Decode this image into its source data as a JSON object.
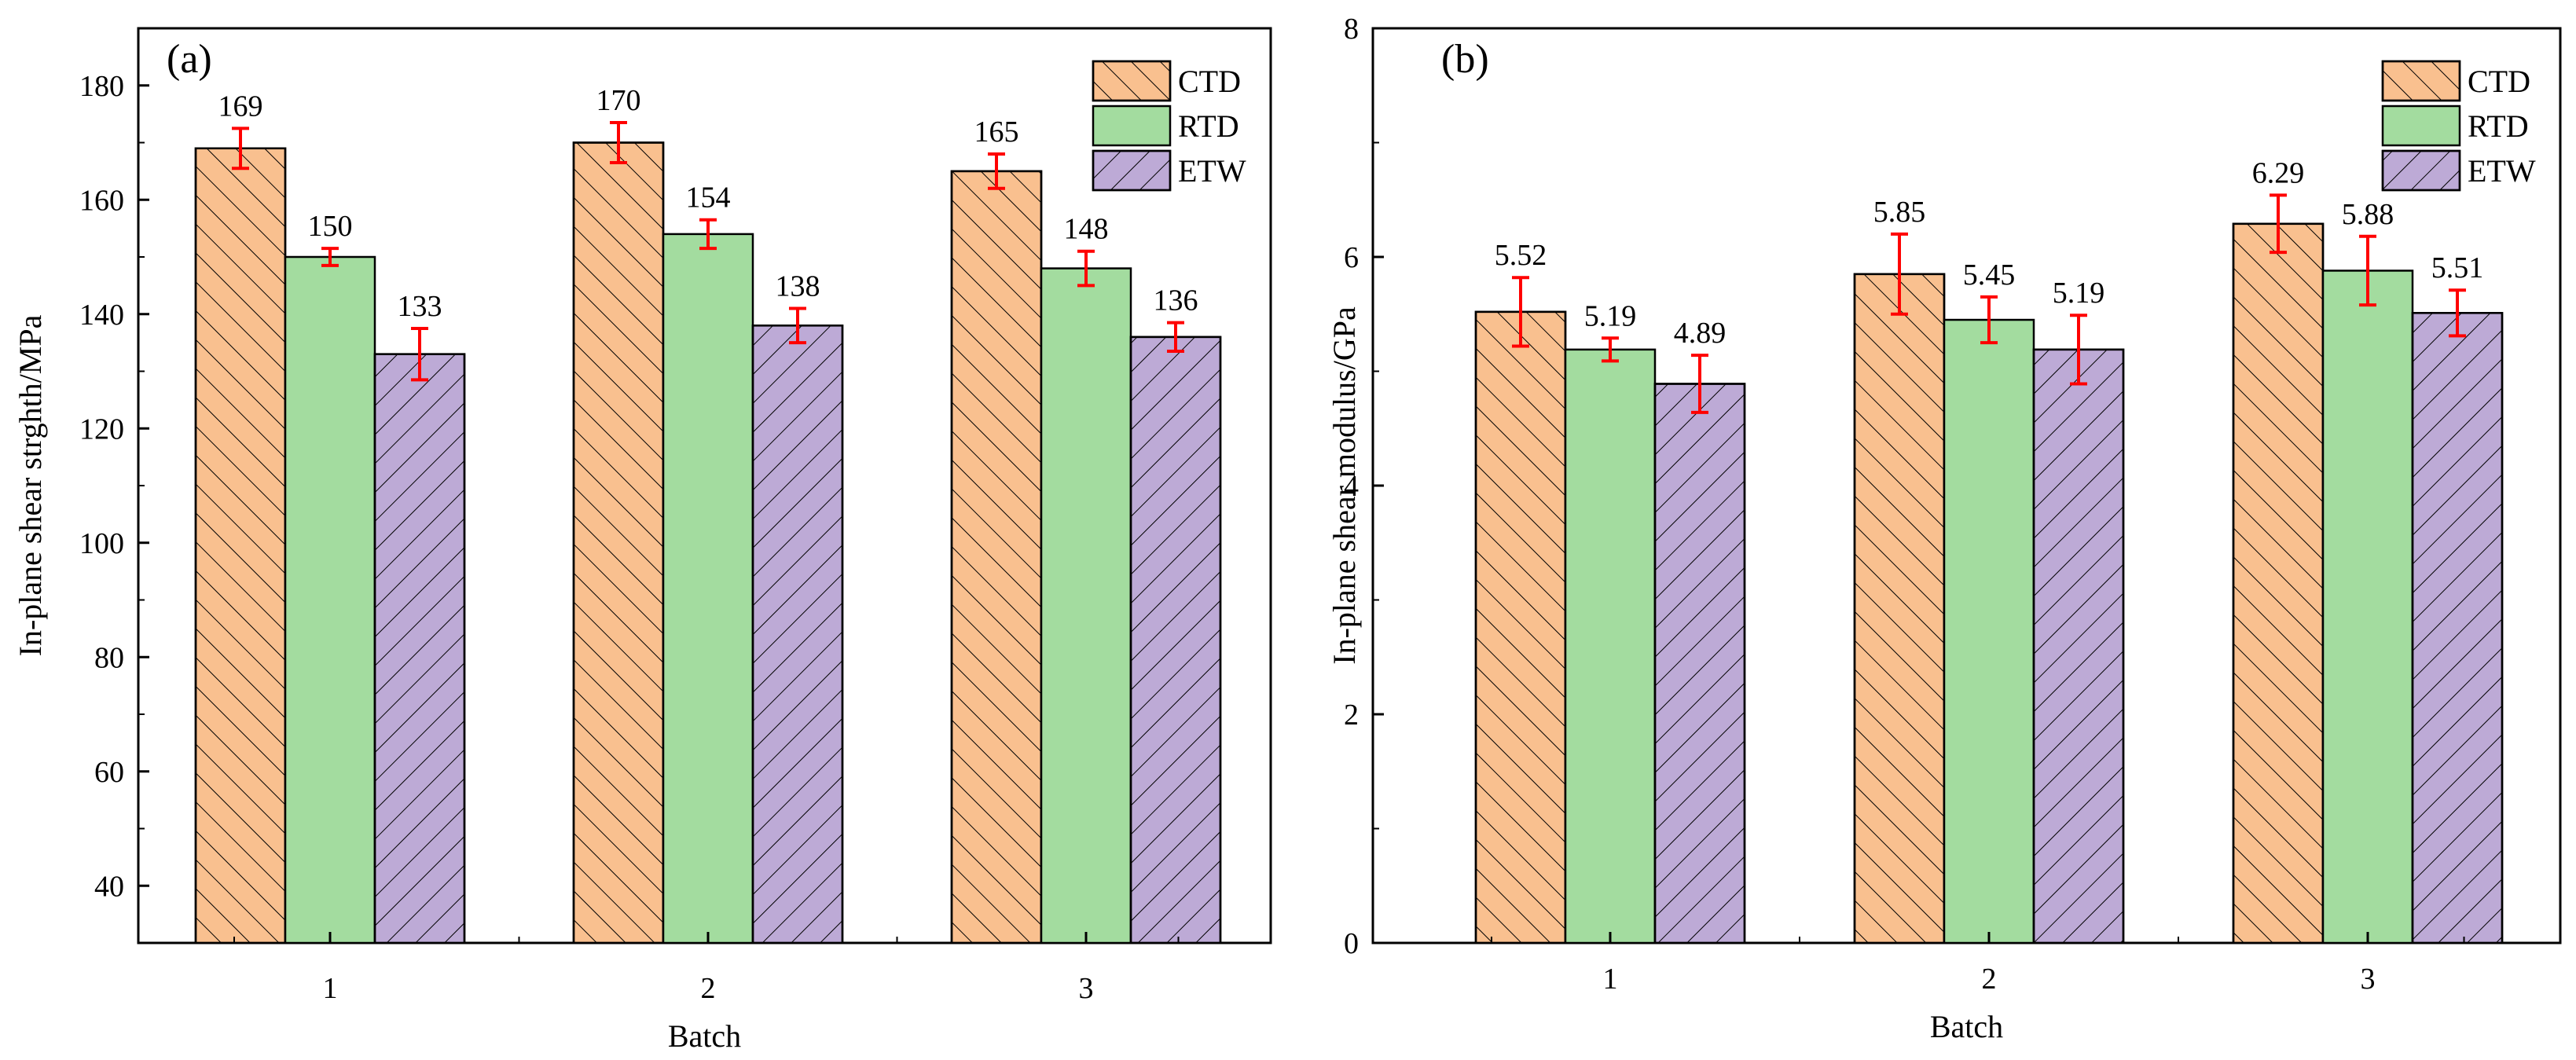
{
  "colors": {
    "CTD": "#f9c08f",
    "RTD": "#a3dc9f",
    "ETW": "#bdaad6",
    "error_bar": "#ff0000",
    "axis": "#000000"
  },
  "chart_data": [
    {
      "type": "bar",
      "panel_label": "(a)",
      "categories": [
        "1",
        "2",
        "3"
      ],
      "series": [
        {
          "name": "CTD",
          "values": [
            169,
            170,
            165
          ],
          "errors": [
            3.5,
            3.5,
            3
          ],
          "labels": [
            "169",
            "170",
            "165"
          ]
        },
        {
          "name": "RTD",
          "values": [
            150,
            154,
            148
          ],
          "errors": [
            1.5,
            2.5,
            3
          ],
          "labels": [
            "150",
            "154",
            "148"
          ]
        },
        {
          "name": "ETW",
          "values": [
            133,
            138,
            136
          ],
          "errors": [
            4.5,
            3,
            2.5
          ],
          "labels": [
            "133",
            "138",
            "136"
          ]
        }
      ],
      "xlabel": "Batch",
      "ylabel": "In-plane shear strghth/MPa",
      "ylim": [
        30,
        190
      ],
      "yticks": [
        40,
        60,
        80,
        100,
        120,
        140,
        160,
        180
      ],
      "legend": "top-right",
      "grid": false
    },
    {
      "type": "bar",
      "panel_label": "(b)",
      "categories": [
        "1",
        "2",
        "3"
      ],
      "series": [
        {
          "name": "CTD",
          "values": [
            5.52,
            5.85,
            6.29
          ],
          "errors": [
            0.3,
            0.35,
            0.25
          ],
          "labels": [
            "5.52",
            "5.85",
            "6.29"
          ]
        },
        {
          "name": "RTD",
          "values": [
            5.19,
            5.45,
            5.88
          ],
          "errors": [
            0.1,
            0.2,
            0.3
          ],
          "labels": [
            "5.19",
            "5.45",
            "5.88"
          ]
        },
        {
          "name": "ETW",
          "values": [
            4.89,
            5.19,
            5.51
          ],
          "errors": [
            0.25,
            0.3,
            0.2
          ],
          "labels": [
            "4.89",
            "5.19",
            "5.51"
          ]
        }
      ],
      "xlabel": "Batch",
      "ylabel": "In-plane shear modulus/GPa",
      "ylim": [
        0,
        8
      ],
      "yticks": [
        0,
        2,
        4,
        6,
        8
      ],
      "legend": "top-right",
      "grid": false
    }
  ]
}
